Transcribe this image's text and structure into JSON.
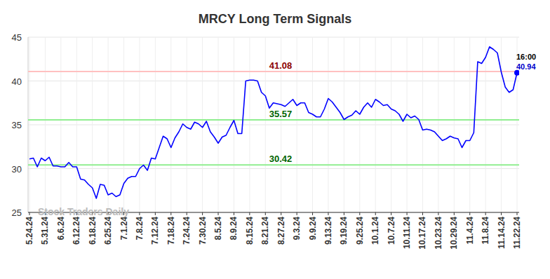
{
  "chart_data": {
    "type": "line",
    "title": "MRCY Long Term Signals",
    "watermark": "Stock Traders Daily",
    "categories": [
      "5.24.24",
      null,
      null,
      null,
      "5.31.24",
      null,
      null,
      null,
      "6.6.24",
      null,
      null,
      null,
      "6.12.24",
      null,
      null,
      null,
      "6.18.24",
      null,
      null,
      null,
      "6.25.24",
      null,
      null,
      null,
      "7.1.24",
      null,
      null,
      null,
      "7.8.24",
      null,
      null,
      null,
      "7.12.24",
      null,
      null,
      null,
      "7.18.24",
      null,
      null,
      null,
      "7.24.24",
      null,
      null,
      null,
      "7.30.24",
      null,
      null,
      null,
      "8.5.24",
      null,
      null,
      null,
      "8.9.24",
      null,
      null,
      null,
      "8.15.24",
      null,
      null,
      null,
      "8.21.24",
      null,
      null,
      null,
      "8.27.24",
      null,
      null,
      null,
      "9.3.24",
      null,
      null,
      null,
      "9.9.24",
      null,
      null,
      null,
      "9.13.24",
      null,
      null,
      null,
      "9.19.24",
      null,
      null,
      null,
      "9.25.24",
      null,
      null,
      null,
      "10.1.24",
      null,
      null,
      null,
      "10.7.24",
      null,
      null,
      null,
      "10.11.24",
      null,
      null,
      null,
      "10.17.24",
      null,
      null,
      null,
      "10.23.24",
      null,
      null,
      null,
      "10.29.24",
      null,
      null,
      null,
      "11.4.24",
      null,
      null,
      null,
      "11.8.24",
      null,
      null,
      null,
      "11.14.24",
      null,
      null,
      null,
      "11.22.24"
    ],
    "series": [
      {
        "color": "#0000ff",
        "values": [
          31.1,
          31.2,
          30.2,
          31.2,
          30.9,
          31.3,
          30.3,
          30.3,
          30.2,
          30.2,
          30.7,
          30.2,
          30.2,
          28.8,
          28.7,
          28.2,
          27.8,
          26.6,
          28.2,
          28.1,
          27.0,
          27.2,
          26.8,
          27.0,
          28.3,
          28.9,
          29.1,
          29.1,
          30.0,
          30.4,
          29.8,
          31.2,
          31.1,
          32.4,
          33.7,
          33.4,
          32.4,
          33.5,
          34.2,
          35.1,
          34.7,
          34.5,
          35.3,
          35.1,
          34.7,
          35.4,
          34.2,
          33.6,
          32.9,
          33.6,
          33.8,
          34.7,
          35.5,
          34.0,
          34.0,
          40.0,
          40.1,
          40.1,
          40.0,
          38.7,
          38.3,
          36.9,
          37.5,
          37.4,
          37.3,
          37.1,
          37.5,
          37.9,
          37.2,
          37.5,
          37.5,
          36.4,
          36.2,
          35.9,
          35.9,
          36.8,
          38.0,
          37.6,
          37.0,
          36.4,
          35.6,
          35.9,
          36.1,
          36.6,
          36.2,
          37.0,
          37.5,
          37.0,
          37.9,
          37.6,
          37.2,
          37.3,
          36.8,
          36.6,
          36.2,
          35.4,
          36.2,
          35.8,
          36.0,
          35.6,
          34.4,
          34.5,
          34.4,
          34.2,
          33.7,
          33.2,
          33.4,
          33.7,
          33.5,
          33.4,
          32.4,
          33.2,
          33.2,
          34.1,
          42.2,
          42.0,
          42.7,
          43.9,
          43.6,
          43.2,
          41.0,
          39.3,
          38.7,
          39.0,
          40.94
        ]
      }
    ],
    "ylim": [
      25,
      45
    ],
    "yticks": [
      25,
      30,
      35,
      40,
      45
    ],
    "grid": true,
    "reference_lines": [
      {
        "value": 41.08,
        "label": "41.08",
        "color": "#ffc0c0",
        "label_color": "#8b0000"
      },
      {
        "value": 35.57,
        "label": "35.57",
        "color": "#90ee90",
        "label_color": "#006400"
      },
      {
        "value": 30.42,
        "label": "30.42",
        "color": "#90ee90",
        "label_color": "#006400"
      }
    ],
    "last_point": {
      "time": "16:00",
      "label": "40.94",
      "label_color": "#0000cc"
    }
  }
}
